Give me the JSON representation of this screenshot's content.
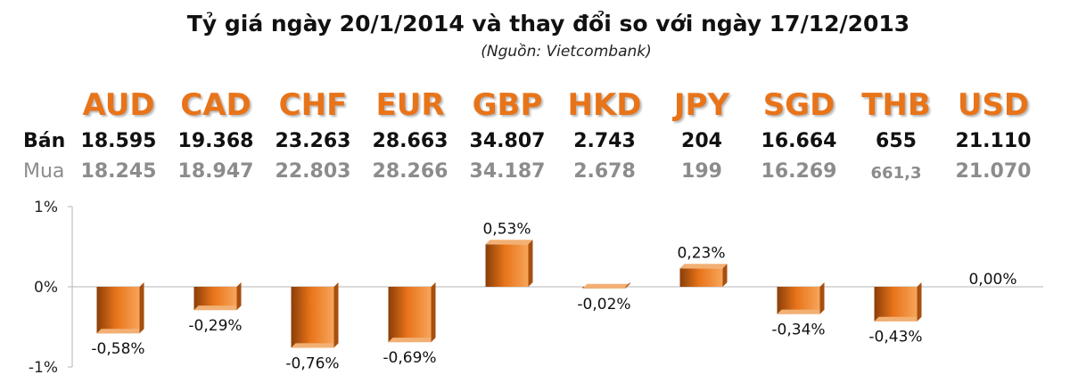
{
  "header": {
    "title": "Tỷ giá ngày 20/1/2014 và thay đổi so với ngày 17/12/2013",
    "source": "(Nguồn: Vietcombank)"
  },
  "rows": {
    "sell_label": "Bán",
    "buy_label": "Mua"
  },
  "currencies": [
    {
      "code": "AUD",
      "sell": "18.595",
      "buy": "18.245"
    },
    {
      "code": "CAD",
      "sell": "19.368",
      "buy": "18.947"
    },
    {
      "code": "CHF",
      "sell": "23.263",
      "buy": "22.803"
    },
    {
      "code": "EUR",
      "sell": "28.663",
      "buy": "28.266"
    },
    {
      "code": "GBP",
      "sell": "34.807",
      "buy": "34.187"
    },
    {
      "code": "HKD",
      "sell": "2.743",
      "buy": "2.678"
    },
    {
      "code": "JPY",
      "sell": "204",
      "buy": "199"
    },
    {
      "code": "SGD",
      "sell": "16.664",
      "buy": "16.269"
    },
    {
      "code": "THB",
      "sell": "655",
      "buy": "661,3"
    },
    {
      "code": "USD",
      "sell": "21.110",
      "buy": "21.070"
    }
  ],
  "chart_data": {
    "type": "bar",
    "categories": [
      "AUD",
      "CAD",
      "CHF",
      "EUR",
      "GBP",
      "HKD",
      "JPY",
      "SGD",
      "THB",
      "USD"
    ],
    "values": [
      -0.58,
      -0.29,
      -0.76,
      -0.69,
      0.53,
      -0.02,
      0.23,
      -0.34,
      -0.43,
      0.0
    ],
    "data_labels": [
      "-0,58%",
      "-0,29%",
      "-0,76%",
      "-0,69%",
      "0,53%",
      "-0,02%",
      "0,23%",
      "-0,34%",
      "-0,43%",
      "0,00%"
    ],
    "ylim": [
      -1,
      1
    ],
    "yticks": [
      1,
      0,
      -1
    ],
    "ytick_labels": [
      "1%",
      "0%",
      "-1%"
    ],
    "colors": {
      "bar": "#e8741a",
      "bar_dark": "#8a3e08",
      "bar_light": "#f7a55a"
    },
    "grid": false
  }
}
